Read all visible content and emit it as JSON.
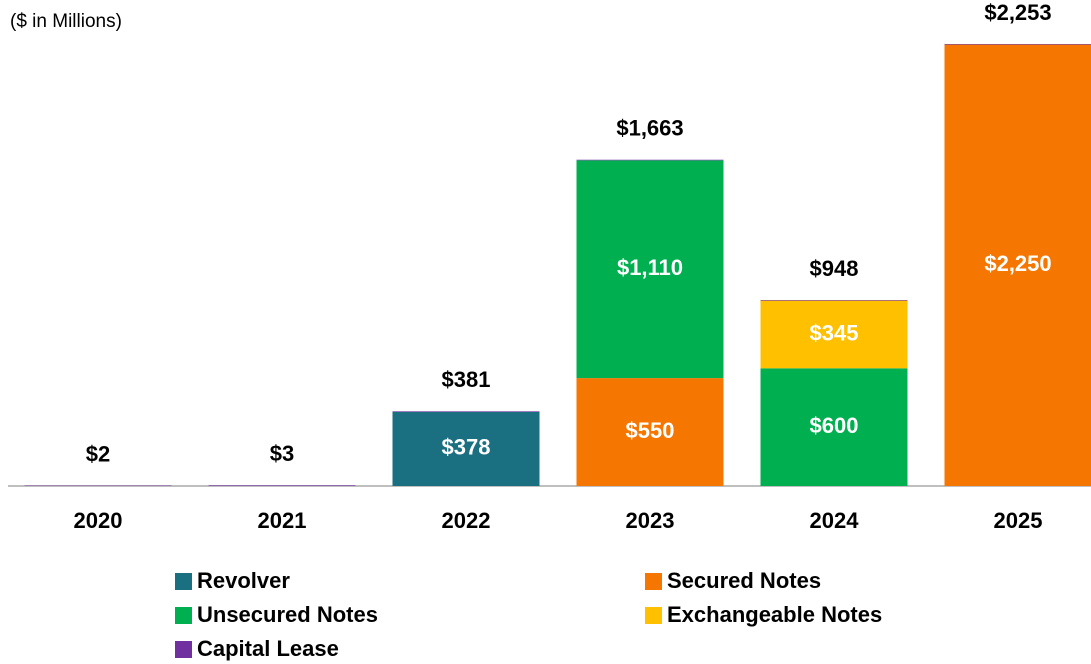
{
  "chart_data": {
    "type": "stacked_bar",
    "subtitle": "($ in Millions)",
    "categories": [
      "2020",
      "2021",
      "2022",
      "2023",
      "2024",
      "2025"
    ],
    "series": [
      {
        "name": "Revolver",
        "color": "#1a6f80",
        "values": [
          null,
          null,
          378,
          null,
          null,
          null
        ],
        "value_labels": [
          null,
          null,
          "$378",
          null,
          null,
          null
        ]
      },
      {
        "name": "Secured Notes",
        "color": "#f57600",
        "values": [
          null,
          null,
          null,
          550,
          null,
          2250
        ],
        "value_labels": [
          null,
          null,
          null,
          "$550",
          null,
          "$2,250"
        ]
      },
      {
        "name": "Unsecured Notes",
        "color": "#00b050",
        "values": [
          null,
          null,
          null,
          1110,
          600,
          null
        ],
        "value_labels": [
          null,
          null,
          null,
          "$1,110",
          "$600",
          null
        ]
      },
      {
        "name": "Exchangeable Notes",
        "color": "#ffc000",
        "values": [
          null,
          null,
          null,
          null,
          345,
          null
        ],
        "value_labels": [
          null,
          null,
          null,
          null,
          "$345",
          null
        ]
      },
      {
        "name": "Capital Lease",
        "color": "#7030a0",
        "values": [
          2,
          3,
          3,
          3,
          3,
          3
        ]
      }
    ],
    "totals": [
      2,
      3,
      381,
      1663,
      948,
      2253
    ],
    "total_labels": [
      "$2",
      "$3",
      "$381",
      "$1,663",
      "$948",
      "$2,253"
    ]
  }
}
